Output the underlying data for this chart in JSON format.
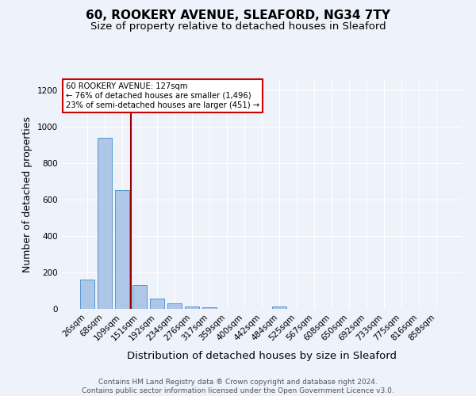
{
  "title1": "60, ROOKERY AVENUE, SLEAFORD, NG34 7TY",
  "title2": "Size of property relative to detached houses in Sleaford",
  "xlabel": "Distribution of detached houses by size in Sleaford",
  "ylabel": "Number of detached properties",
  "categories": [
    "26sqm",
    "68sqm",
    "109sqm",
    "151sqm",
    "192sqm",
    "234sqm",
    "276sqm",
    "317sqm",
    "359sqm",
    "400sqm",
    "442sqm",
    "484sqm",
    "525sqm",
    "567sqm",
    "608sqm",
    "650sqm",
    "692sqm",
    "733sqm",
    "775sqm",
    "816sqm",
    "858sqm"
  ],
  "values": [
    160,
    940,
    650,
    130,
    58,
    30,
    15,
    10,
    0,
    0,
    0,
    13,
    0,
    0,
    0,
    0,
    0,
    0,
    0,
    0,
    0
  ],
  "bar_color": "#aec6e8",
  "bar_edge_color": "#5599cc",
  "background_color": "#eef2fb",
  "vline_color": "#990000",
  "annotation_text": "60 ROOKERY AVENUE: 127sqm\n← 76% of detached houses are smaller (1,496)\n23% of semi-detached houses are larger (451) →",
  "annotation_box_color": "white",
  "annotation_box_edge_color": "#cc0000",
  "ylim": [
    0,
    1260
  ],
  "yticks": [
    0,
    200,
    400,
    600,
    800,
    1000,
    1200
  ],
  "footer": "Contains HM Land Registry data ® Crown copyright and database right 2024.\nContains public sector information licensed under the Open Government Licence v3.0.",
  "title1_fontsize": 11,
  "title2_fontsize": 9.5,
  "xlabel_fontsize": 9.5,
  "ylabel_fontsize": 9,
  "tick_fontsize": 7.5,
  "footer_fontsize": 6.5,
  "vline_pos": 2.5
}
